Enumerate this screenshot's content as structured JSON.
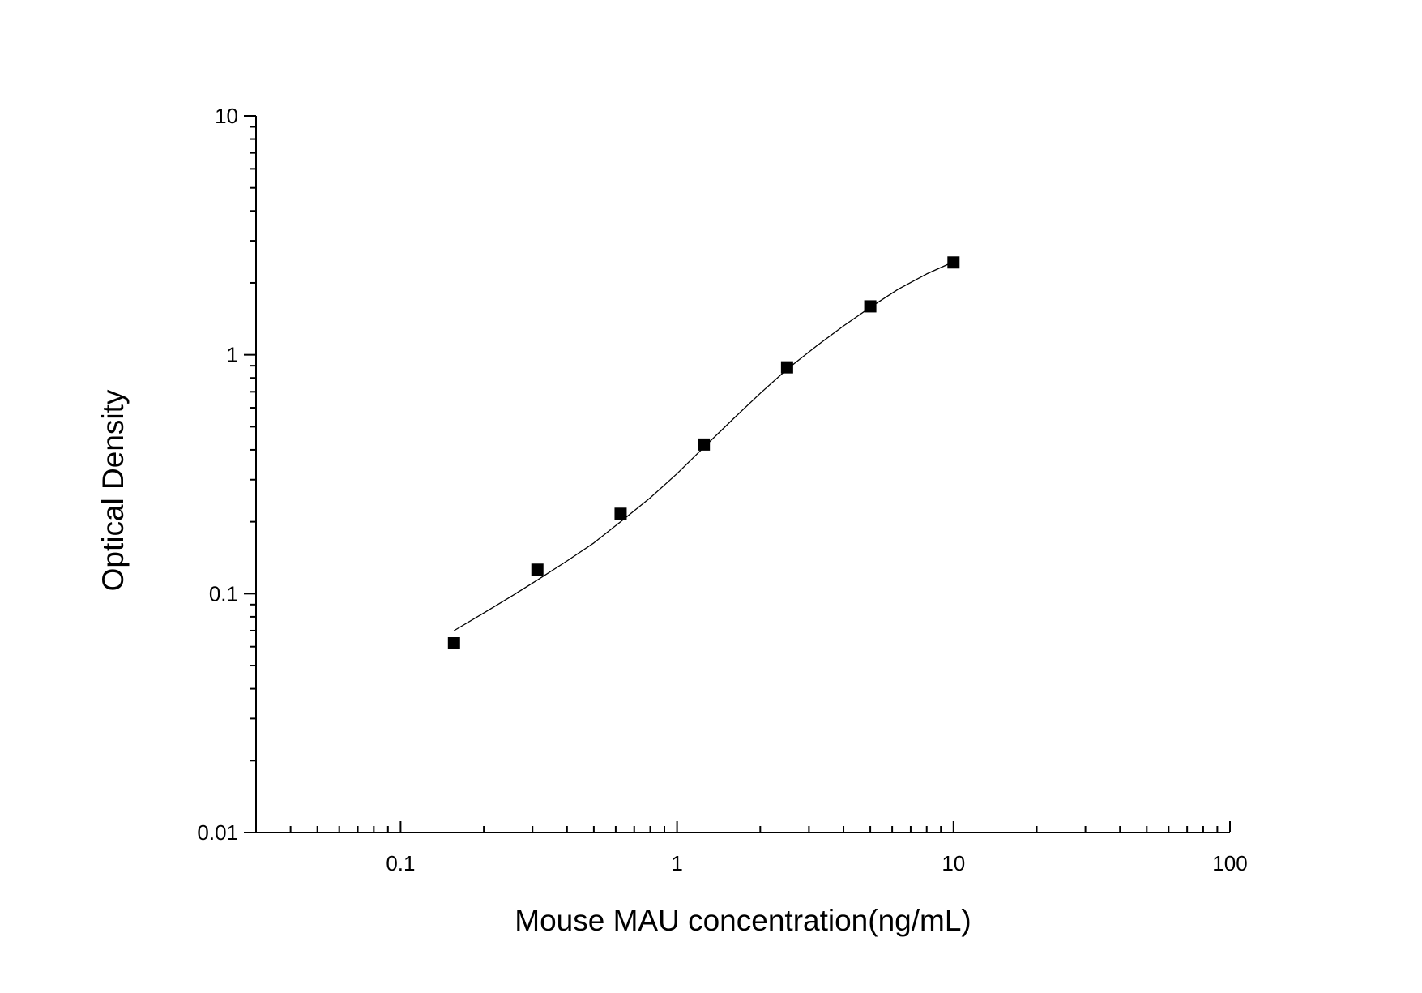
{
  "chart_data": {
    "type": "scatter",
    "title": "",
    "xlabel": "Mouse MAU concentration(ng/mL)",
    "ylabel": "Optical Density",
    "xscale": "log",
    "yscale": "log",
    "xlim": [
      0.03,
      100
    ],
    "ylim": [
      0.01,
      10
    ],
    "x_ticks": [
      {
        "value": 0.1,
        "label": "0.1"
      },
      {
        "value": 1,
        "label": "1"
      },
      {
        "value": 10,
        "label": "10"
      },
      {
        "value": 100,
        "label": "100"
      }
    ],
    "y_ticks": [
      {
        "value": 0.01,
        "label": "0.01"
      },
      {
        "value": 0.1,
        "label": "0.1"
      },
      {
        "value": 1,
        "label": "1"
      },
      {
        "value": 10,
        "label": "10"
      }
    ],
    "grid": false,
    "legend": "none",
    "series": [
      {
        "marker": "square",
        "color": "#000000",
        "x": [
          0.156,
          0.3125,
          0.625,
          1.25,
          2.5,
          5,
          10
        ],
        "y": [
          0.062,
          0.126,
          0.216,
          0.421,
          0.886,
          1.595,
          2.435
        ]
      }
    ],
    "fit_curve": {
      "color": "#000000",
      "x": [
        0.156,
        0.2,
        0.25,
        0.3125,
        0.4,
        0.5,
        0.625,
        0.8,
        1.0,
        1.25,
        1.6,
        2.0,
        2.5,
        3.2,
        4.0,
        5.0,
        6.3,
        8.0,
        10.0
      ],
      "y": [
        0.07,
        0.083,
        0.097,
        0.114,
        0.137,
        0.163,
        0.2,
        0.252,
        0.318,
        0.41,
        0.54,
        0.69,
        0.87,
        1.09,
        1.32,
        1.58,
        1.88,
        2.18,
        2.45
      ]
    }
  }
}
